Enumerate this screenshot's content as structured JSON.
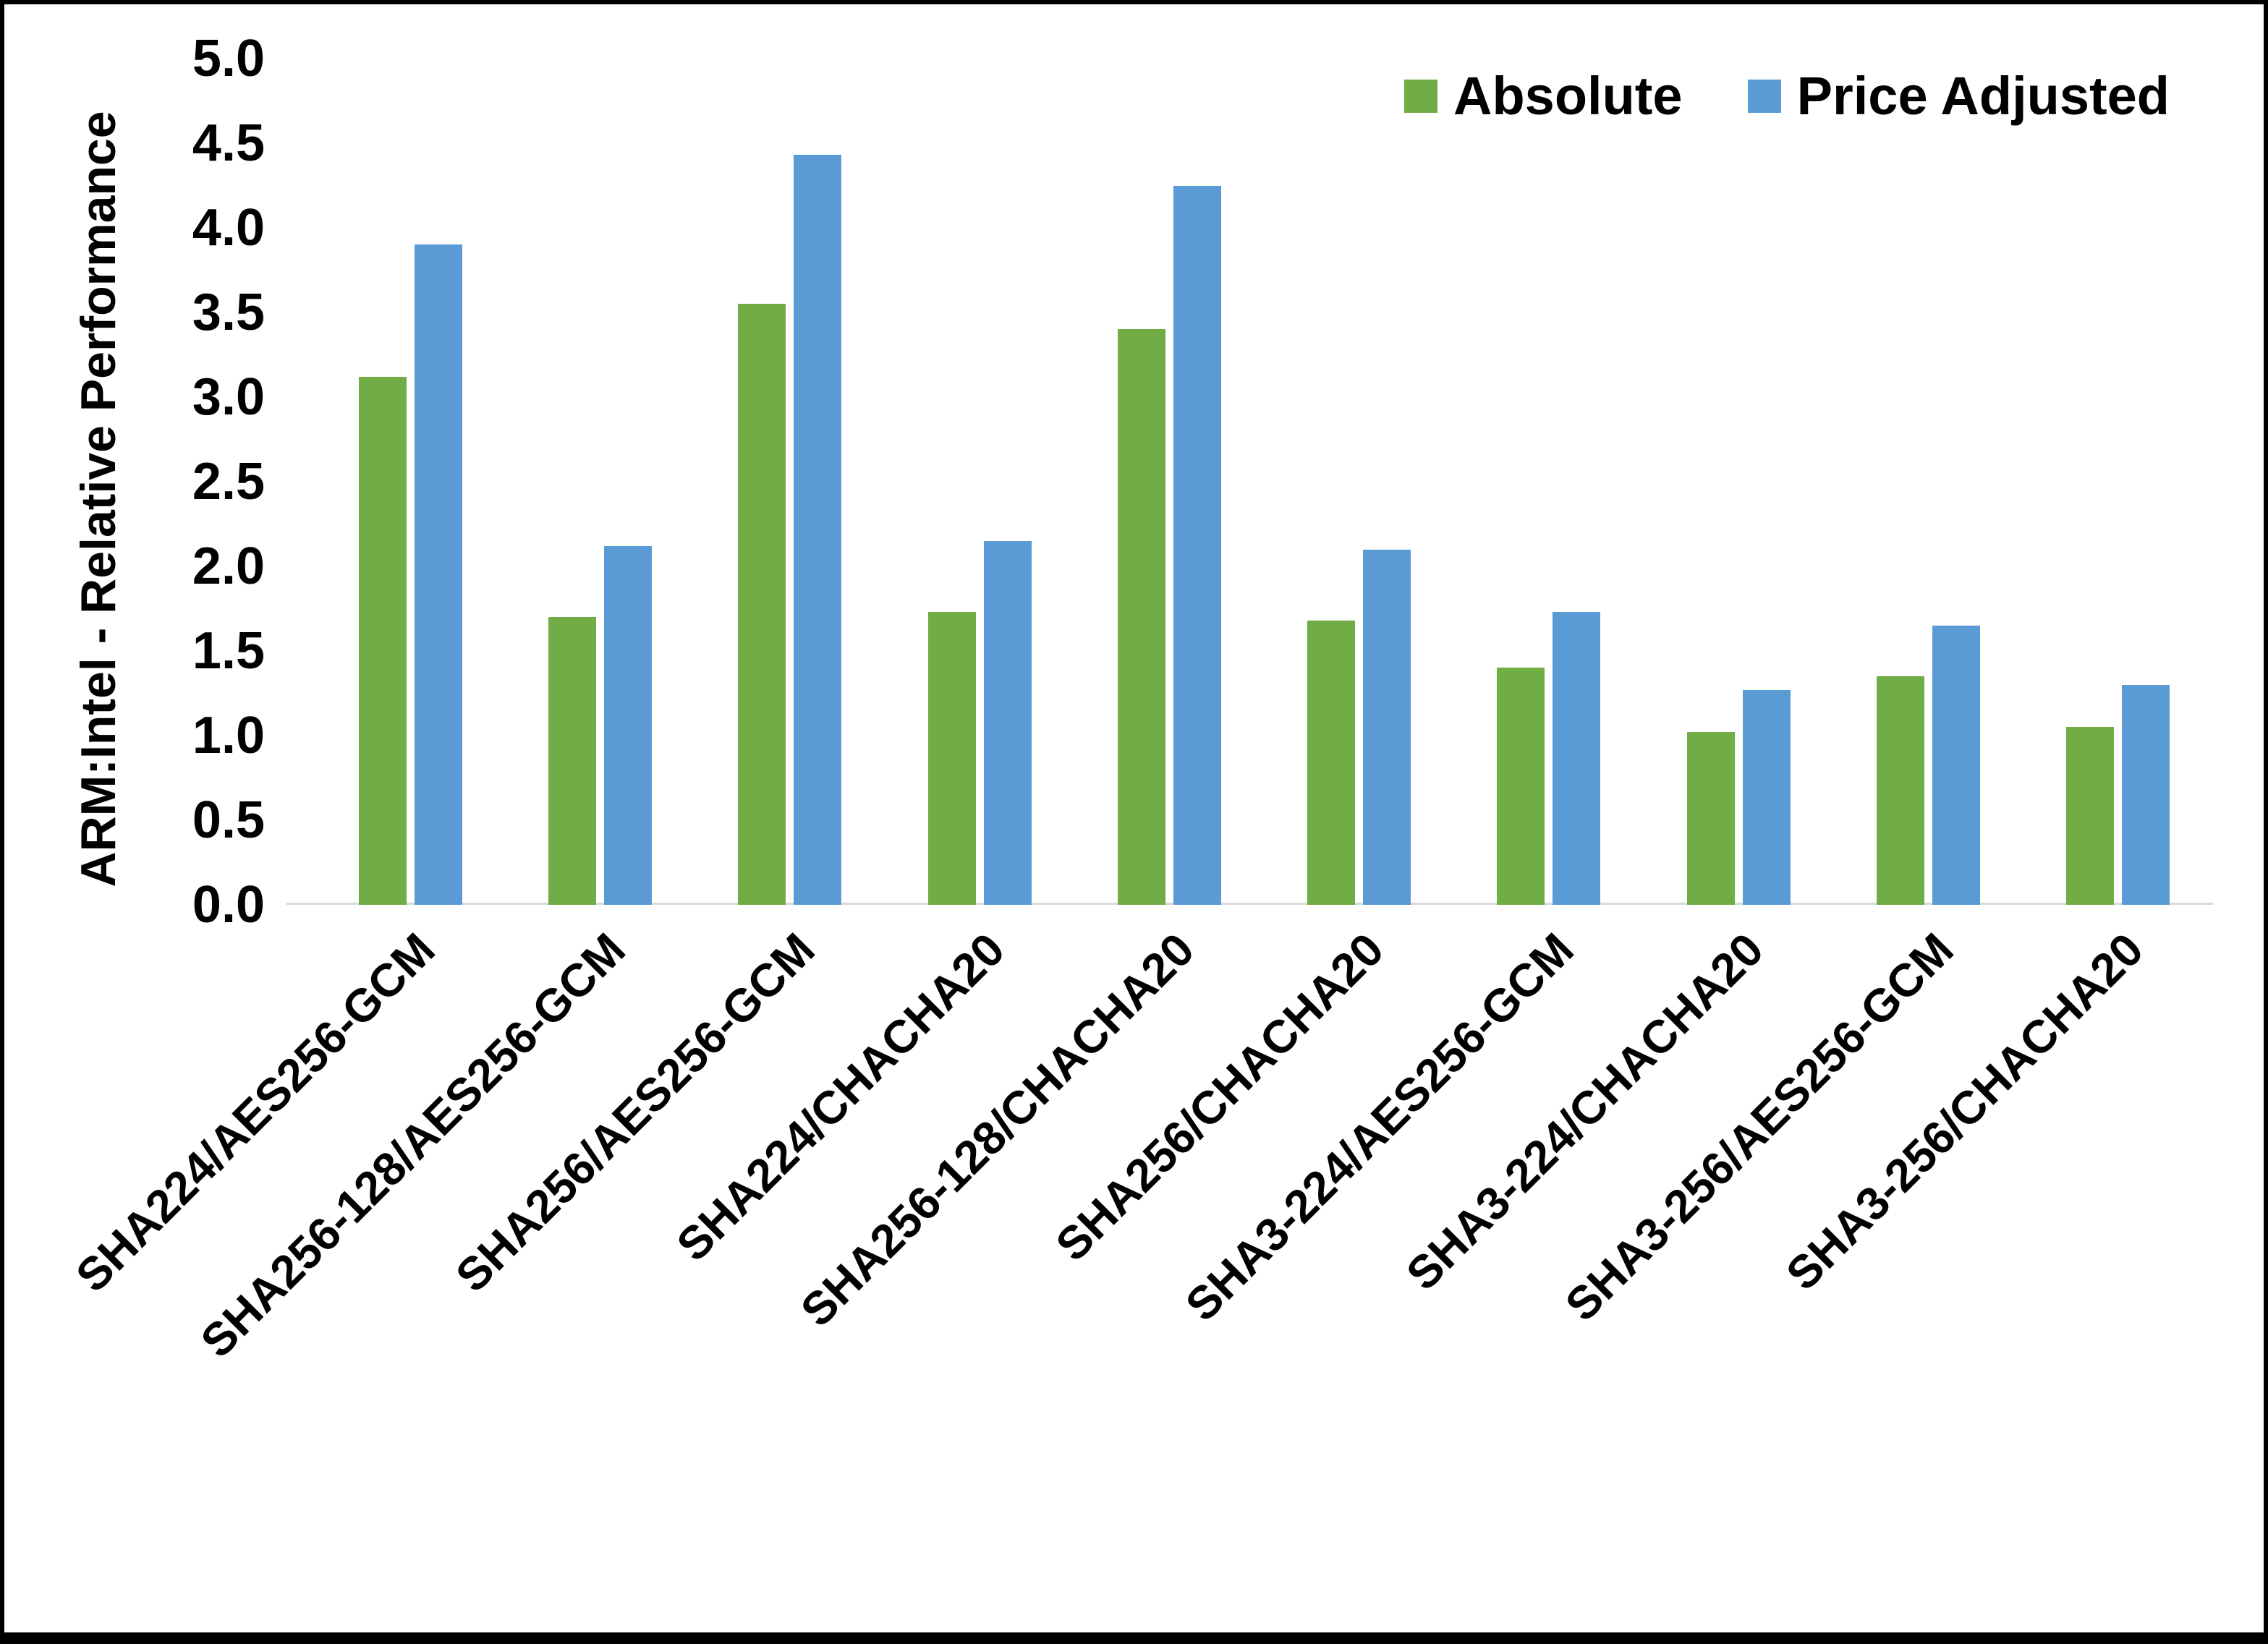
{
  "chart_data": {
    "type": "bar",
    "title": "",
    "xlabel": "",
    "ylabel": "ARM:Intel - Relative Performance",
    "ylim": [
      0,
      5.0
    ],
    "yticks": [
      "0.0",
      "0.5",
      "1.0",
      "1.5",
      "2.0",
      "2.5",
      "3.0",
      "3.5",
      "4.0",
      "4.5",
      "5.0"
    ],
    "grid": false,
    "legend_position": "top-right",
    "categories": [
      "SHA224/AES256-GCM",
      "SHA256-128/AES256-GCM",
      "SHA256/AES256-GCM",
      "SHA224/CHACHA20",
      "SHA256-128/CHACHA20",
      "SHA256/CHACHA20",
      "SHA3-224/AES256-GCM",
      "SHA3-224/CHACHA20",
      "SHA3-256/AES256-GCM",
      "SHA3-256/CHACHA20"
    ],
    "series": [
      {
        "name": "Absolute",
        "color": "#70AD47",
        "values": [
          3.12,
          1.7,
          3.55,
          1.73,
          3.4,
          1.68,
          1.4,
          1.02,
          1.35,
          1.05
        ]
      },
      {
        "name": "Price Adjusted",
        "color": "#5B9BD5",
        "values": [
          3.9,
          2.12,
          4.43,
          2.15,
          4.25,
          2.1,
          1.73,
          1.27,
          1.65,
          1.3
        ]
      }
    ]
  }
}
